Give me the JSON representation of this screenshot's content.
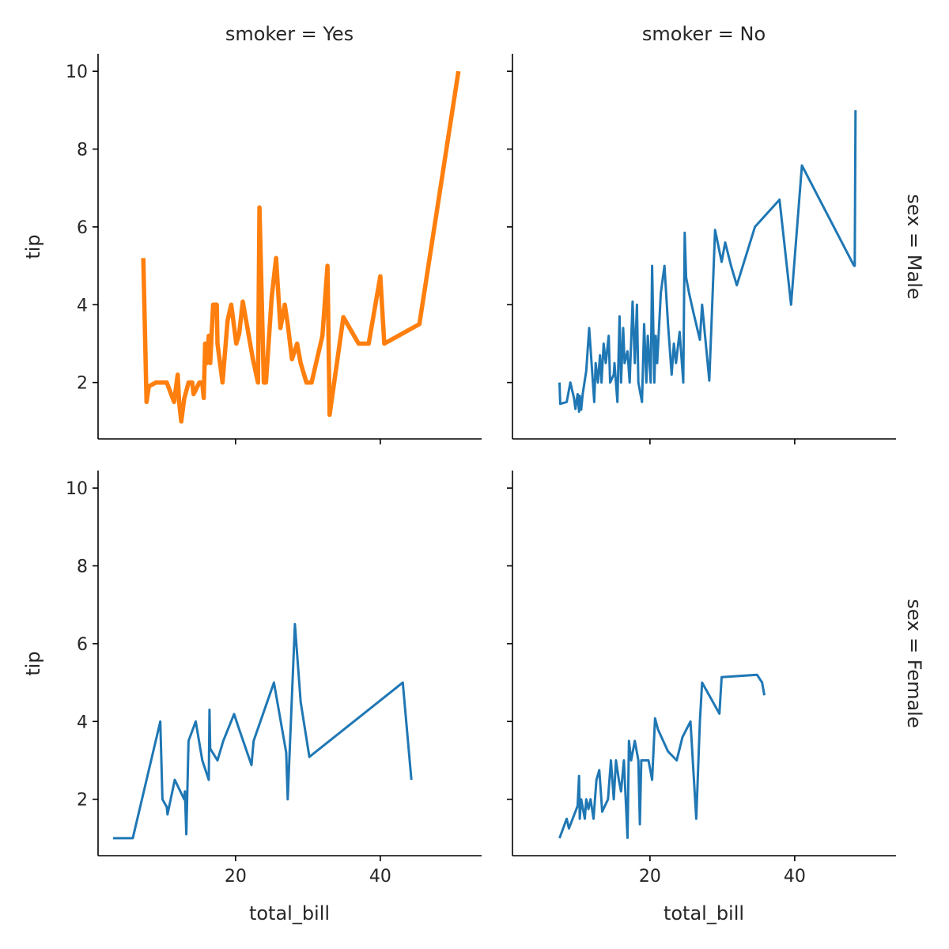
{
  "colors": {
    "default_line": "#1f77b4",
    "highlight_line": "#ff7f0e",
    "axis": "#000000",
    "text": "#262626"
  },
  "chart_data": {
    "type": "line",
    "layout": "facet-grid",
    "xlabel": "total_bill",
    "ylabel": "tip",
    "xlim": [
      1,
      54
    ],
    "ylim": [
      0.55,
      10.45
    ],
    "xticks": [
      20,
      40
    ],
    "yticks": [
      2,
      4,
      6,
      8,
      10
    ],
    "col_titles": [
      "smoker = Yes",
      "smoker = No"
    ],
    "row_titles": [
      "sex = Male",
      "sex = Female"
    ],
    "panels": [
      {
        "id": "male-smoker",
        "row": 0,
        "col": 0,
        "col_title": "smoker = Yes",
        "row_title": "sex = Male",
        "series_color": "#ff7f0e",
        "emphasized": true,
        "x": [
          7.25,
          7.7,
          8.0,
          9.0,
          10.5,
          11.5,
          12.0,
          12.2,
          12.5,
          12.9,
          13.5,
          14.0,
          14.2,
          15.0,
          15.4,
          15.6,
          15.8,
          16.0,
          16.3,
          16.5,
          16.9,
          17.4,
          17.5,
          18.2,
          18.9,
          19.4,
          20.1,
          20.5,
          21.0,
          22.4,
          23.1,
          23.3,
          23.9,
          24.2,
          25.0,
          25.6,
          26.2,
          26.8,
          27.2,
          27.8,
          28.5,
          29.0,
          29.8,
          30.5,
          32.0,
          32.7,
          33.0,
          34.9,
          37.0,
          38.4,
          40.0,
          40.55,
          45.4,
          50.8
        ],
        "y": [
          5.2,
          1.5,
          1.9,
          2.0,
          2.0,
          1.5,
          2.2,
          1.5,
          1.0,
          1.58,
          2.0,
          2.0,
          1.7,
          2.0,
          2.0,
          1.6,
          3.0,
          2.5,
          3.2,
          2.5,
          4.0,
          4.0,
          3.0,
          2.0,
          3.6,
          4.0,
          3.0,
          3.25,
          4.08,
          2.6,
          2.0,
          6.5,
          2.0,
          2.0,
          4.2,
          5.2,
          3.4,
          4.0,
          3.5,
          2.6,
          3.0,
          2.5,
          2.0,
          2.0,
          3.2,
          5.0,
          1.17,
          3.68,
          3.0,
          3.0,
          4.73,
          3.0,
          3.5,
          10.0
        ]
      },
      {
        "id": "male-nonsmoker",
        "row": 0,
        "col": 1,
        "col_title": "smoker = No",
        "row_title": "sex = Male",
        "series_color": "#1f77b4",
        "emphasized": false,
        "x": [
          7.5,
          7.6,
          8.5,
          9.0,
          9.5,
          9.7,
          10.0,
          10.2,
          10.3,
          10.5,
          10.7,
          11.2,
          11.6,
          12.3,
          12.5,
          12.8,
          13.1,
          13.3,
          13.6,
          13.9,
          14.3,
          14.5,
          15.0,
          15.1,
          15.5,
          15.8,
          16.0,
          16.3,
          16.5,
          16.9,
          17.2,
          17.6,
          17.9,
          18.2,
          18.4,
          18.9,
          19.2,
          19.5,
          19.7,
          20.1,
          20.3,
          20.6,
          20.8,
          21.0,
          21.5,
          22.0,
          22.5,
          23.0,
          23.3,
          23.6,
          24.1,
          24.6,
          24.8,
          25.0,
          25.4,
          26.0,
          26.9,
          27.2,
          28.2,
          29.0,
          29.9,
          30.4,
          31.2,
          32.0,
          34.5,
          37.9,
          39.5,
          41.0,
          48.2,
          48.3,
          48.4
        ],
        "y": [
          2.0,
          1.45,
          1.5,
          2.0,
          1.6,
          1.32,
          1.7,
          1.25,
          1.66,
          1.3,
          1.7,
          2.3,
          3.4,
          1.5,
          2.5,
          2.0,
          2.7,
          2.0,
          3.0,
          2.5,
          3.2,
          2.0,
          2.2,
          2.5,
          1.5,
          3.7,
          2.0,
          3.4,
          2.5,
          2.8,
          2.0,
          4.08,
          2.5,
          4.0,
          2.0,
          1.5,
          3.5,
          2.0,
          3.2,
          2.0,
          5.0,
          2.0,
          3.2,
          2.5,
          4.3,
          5.0,
          3.5,
          2.2,
          3.0,
          2.5,
          3.3,
          2.0,
          5.85,
          4.7,
          4.3,
          3.8,
          3.1,
          4.0,
          2.05,
          5.92,
          5.1,
          5.6,
          5.0,
          4.5,
          6.0,
          6.7,
          4.0,
          7.58,
          5.0,
          5.0,
          9.0
        ]
      },
      {
        "id": "female-smoker",
        "row": 1,
        "col": 0,
        "col_title": "smoker = Yes",
        "row_title": "sex = Female",
        "series_color": "#1f77b4",
        "emphasized": false,
        "x": [
          3.07,
          5.8,
          9.6,
          9.9,
          10.5,
          10.6,
          11.6,
          12.9,
          13.0,
          13.2,
          13.5,
          14.5,
          15.4,
          16.3,
          16.4,
          16.5,
          17.5,
          18.3,
          19.8,
          20.5,
          22.2,
          22.5,
          25.3,
          27.0,
          27.2,
          28.2,
          29.0,
          30.2,
          43.1,
          44.3
        ],
        "y": [
          1.0,
          1.0,
          4.0,
          2.0,
          1.8,
          1.61,
          2.5,
          2.0,
          2.2,
          1.1,
          3.5,
          4.0,
          3.0,
          2.5,
          4.3,
          3.3,
          3.0,
          3.5,
          4.19,
          3.8,
          2.88,
          3.5,
          5.0,
          3.2,
          2.0,
          6.5,
          4.5,
          3.09,
          5.0,
          2.5
        ]
      },
      {
        "id": "female-nonsmoker",
        "row": 1,
        "col": 1,
        "col_title": "smoker = No",
        "row_title": "sex = Female",
        "series_color": "#1f77b4",
        "emphasized": false,
        "x": [
          7.5,
          8.5,
          8.8,
          10.0,
          10.2,
          10.3,
          10.5,
          11.0,
          11.2,
          11.5,
          11.8,
          12.2,
          12.6,
          13.0,
          13.4,
          14.2,
          14.6,
          15.0,
          15.3,
          15.7,
          16.0,
          16.4,
          16.9,
          17.1,
          17.4,
          17.9,
          18.4,
          18.6,
          18.8,
          19.8,
          20.3,
          20.7,
          21.1,
          22.5,
          23.7,
          24.5,
          25.6,
          26.4,
          26.9,
          27.2,
          29.6,
          29.9,
          34.8,
          35.5,
          35.8
        ],
        "y": [
          1.0,
          1.5,
          1.25,
          1.83,
          2.6,
          1.5,
          2.0,
          1.5,
          2.0,
          1.75,
          2.0,
          1.5,
          2.5,
          2.75,
          1.68,
          2.0,
          3.0,
          2.0,
          3.0,
          2.5,
          2.2,
          3.0,
          1.01,
          3.5,
          3.0,
          3.5,
          3.0,
          1.36,
          3.0,
          3.0,
          2.5,
          4.08,
          3.8,
          3.23,
          3.0,
          3.6,
          4.0,
          1.5,
          4.0,
          5.0,
          4.2,
          5.14,
          5.2,
          5.0,
          4.67
        ]
      }
    ]
  }
}
